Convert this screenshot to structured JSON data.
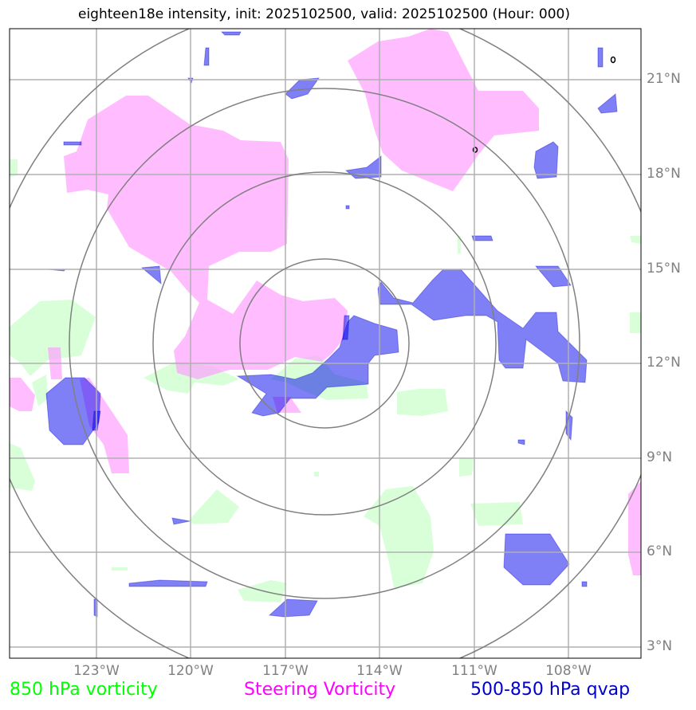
{
  "title": "eighteen18e intensity, init: 2025102500, valid: 2025102500 (Hour: 000)",
  "lat_labels": [
    "21°N",
    "18°N",
    "15°N",
    "12°N",
    "9°N",
    "6°N",
    "3°N"
  ],
  "lon_labels": [
    "123°W",
    "120°W",
    "117°W",
    "114°W",
    "111°W",
    "108°W"
  ],
  "legend": {
    "vorticity_850": "850 hPa vorticity",
    "steering": "Steering Vorticity",
    "qvap": "500-850 hPa qvap"
  },
  "colors": {
    "vort850": "#ccffcc",
    "steering": "#ff99ff",
    "qvap": "#0000ee",
    "grid": "#b0b0b0",
    "rings": "#808080",
    "legend_green": "#00ff00",
    "legend_magenta": "#ff00ff",
    "legend_blue": "#0000cc"
  }
}
